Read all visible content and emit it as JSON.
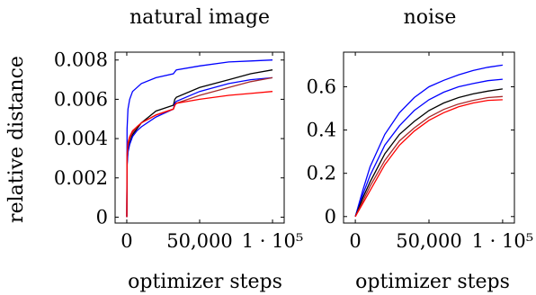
{
  "chart_data": [
    {
      "type": "line",
      "title": "natural image",
      "xlabel": "optimizer steps",
      "ylabel": "relative distance",
      "xlim": [
        -8000,
        108000
      ],
      "ylim": [
        -0.0003,
        0.0084
      ],
      "xticks": [
        0,
        50000,
        100000
      ],
      "xtick_labels": [
        "0",
        "50,000",
        "1 · 10⁵"
      ],
      "yticks": [
        0,
        0.002,
        0.004,
        0.006,
        0.008
      ],
      "ytick_labels": [
        "0",
        "0.002",
        "0.004",
        "0.006",
        "0.008"
      ],
      "grid": false,
      "series": [
        {
          "color": "#0000ff",
          "x": [
            0,
            200,
            800,
            2000,
            4000,
            7000,
            10000,
            20000,
            32000,
            33000,
            34000,
            50000,
            70000,
            85000,
            100000
          ],
          "y": [
            0,
            0.0045,
            0.0055,
            0.006,
            0.0064,
            0.0066,
            0.0068,
            0.0071,
            0.0073,
            0.0074,
            0.0075,
            0.0077,
            0.0079,
            0.00795,
            0.008
          ]
        },
        {
          "color": "#000000",
          "x": [
            0,
            200,
            800,
            2000,
            4000,
            7000,
            10000,
            20000,
            32000,
            33000,
            34000,
            50000,
            70000,
            85000,
            100000
          ],
          "y": [
            0,
            0.0027,
            0.0034,
            0.0038,
            0.0042,
            0.0045,
            0.0048,
            0.0054,
            0.0057,
            0.006,
            0.0061,
            0.0066,
            0.007,
            0.0073,
            0.0075
          ]
        },
        {
          "color": "#0000ff",
          "x": [
            0,
            200,
            800,
            2000,
            4000,
            7000,
            10000,
            20000,
            32000,
            33000,
            34000,
            50000,
            70000,
            85000,
            100000
          ],
          "y": [
            0,
            0.0026,
            0.0033,
            0.0037,
            0.0041,
            0.0044,
            0.0046,
            0.0051,
            0.0055,
            0.0058,
            0.0059,
            0.0064,
            0.0068,
            0.007,
            0.0071
          ]
        },
        {
          "color": "#a52a2a",
          "x": [
            0,
            200,
            800,
            2000,
            4000,
            7000,
            10000,
            20000,
            32000,
            33000,
            34000,
            50000,
            70000,
            85000,
            100000
          ],
          "y": [
            0,
            0.003,
            0.0037,
            0.004,
            0.0043,
            0.0046,
            0.0048,
            0.0052,
            0.0055,
            0.0057,
            0.0058,
            0.0062,
            0.0066,
            0.0069,
            0.0071
          ]
        },
        {
          "color": "#ff0000",
          "x": [
            0,
            200,
            800,
            2000,
            4000,
            7000,
            10000,
            20000,
            32000,
            33000,
            34000,
            50000,
            70000,
            85000,
            100000
          ],
          "y": [
            0,
            0.0032,
            0.0038,
            0.0041,
            0.0044,
            0.0046,
            0.0048,
            0.0052,
            0.0055,
            0.0057,
            0.0058,
            0.006,
            0.0062,
            0.0063,
            0.0064
          ]
        }
      ]
    },
    {
      "type": "line",
      "title": "noise",
      "xlabel": "optimizer steps",
      "ylabel": "",
      "xlim": [
        -8000,
        108000
      ],
      "ylim": [
        -0.03,
        0.76
      ],
      "xticks": [
        0,
        50000,
        100000
      ],
      "xtick_labels": [
        "0",
        "50,000",
        "1 · 10⁵"
      ],
      "yticks": [
        0,
        0.2,
        0.4,
        0.6
      ],
      "ytick_labels": [
        "0",
        "0.2",
        "0.4",
        "0.6"
      ],
      "grid": false,
      "series": [
        {
          "color": "#0000ff",
          "x": [
            0,
            5000,
            10000,
            20000,
            30000,
            40000,
            50000,
            60000,
            70000,
            80000,
            90000,
            100000
          ],
          "y": [
            0,
            0.12,
            0.23,
            0.38,
            0.48,
            0.55,
            0.6,
            0.63,
            0.655,
            0.675,
            0.69,
            0.7
          ]
        },
        {
          "color": "#0000ff",
          "x": [
            0,
            5000,
            10000,
            20000,
            30000,
            40000,
            50000,
            60000,
            70000,
            80000,
            90000,
            100000
          ],
          "y": [
            0,
            0.1,
            0.19,
            0.33,
            0.42,
            0.49,
            0.54,
            0.575,
            0.6,
            0.615,
            0.628,
            0.635
          ]
        },
        {
          "color": "#000000",
          "x": [
            0,
            5000,
            10000,
            20000,
            30000,
            40000,
            50000,
            60000,
            70000,
            80000,
            90000,
            100000
          ],
          "y": [
            0,
            0.085,
            0.16,
            0.29,
            0.38,
            0.44,
            0.49,
            0.525,
            0.55,
            0.567,
            0.58,
            0.59
          ]
        },
        {
          "color": "#a52a2a",
          "x": [
            0,
            5000,
            10000,
            20000,
            30000,
            40000,
            50000,
            60000,
            70000,
            80000,
            90000,
            100000
          ],
          "y": [
            0,
            0.07,
            0.14,
            0.26,
            0.35,
            0.41,
            0.46,
            0.495,
            0.52,
            0.537,
            0.55,
            0.555
          ]
        },
        {
          "color": "#ff0000",
          "x": [
            0,
            5000,
            10000,
            20000,
            30000,
            40000,
            50000,
            60000,
            70000,
            80000,
            90000,
            100000
          ],
          "y": [
            0,
            0.06,
            0.12,
            0.24,
            0.33,
            0.395,
            0.445,
            0.48,
            0.507,
            0.525,
            0.537,
            0.54
          ]
        }
      ]
    }
  ]
}
